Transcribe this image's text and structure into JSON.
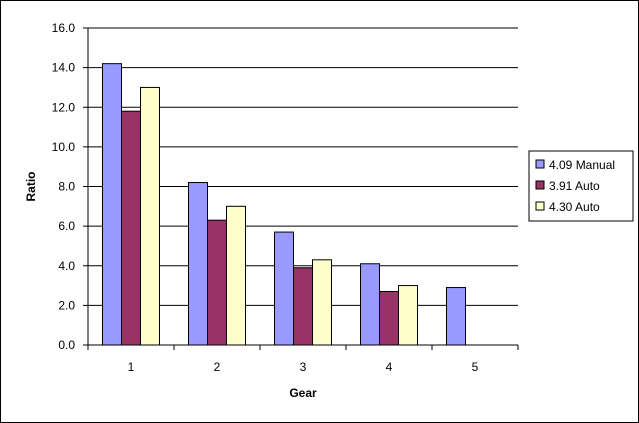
{
  "chart_data": {
    "type": "bar",
    "title": "",
    "xlabel": "Gear",
    "ylabel": "Ratio",
    "categories": [
      "1",
      "2",
      "3",
      "4",
      "5"
    ],
    "ylim": [
      0,
      16
    ],
    "y_ticks": [
      "0.0",
      "2.0",
      "4.0",
      "6.0",
      "8.0",
      "10.0",
      "12.0",
      "14.0",
      "16.0"
    ],
    "grid": true,
    "legend_position": "right",
    "plot_background": "#ffffff",
    "series": [
      {
        "name": "4.09 Manual",
        "color": "#9999ff",
        "values": [
          14.2,
          8.2,
          5.7,
          4.1,
          2.9
        ]
      },
      {
        "name": "3.91 Auto",
        "color": "#993366",
        "values": [
          11.8,
          6.3,
          3.9,
          2.7,
          null
        ]
      },
      {
        "name": "4.30 Auto",
        "color": "#ffffcc",
        "values": [
          13.0,
          7.0,
          4.3,
          3.0,
          null
        ]
      }
    ]
  }
}
